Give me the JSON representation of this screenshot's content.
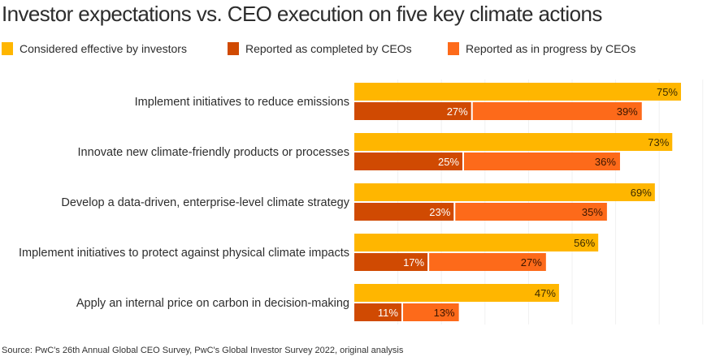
{
  "chart_data": {
    "type": "bar",
    "orientation": "horizontal",
    "title": "Investor expectations vs. CEO execution on five key climate actions",
    "categories": [
      "Implement initiatives to reduce emissions",
      "Innovate new climate-friendly products or processes",
      "Develop a data-driven, enterprise-level climate strategy",
      "Implement initiatives to protect against physical climate impacts",
      "Apply an internal price on carbon in decision-making"
    ],
    "series": [
      {
        "name": "Considered effective by investors",
        "values": [
          75,
          73,
          69,
          56,
          47
        ],
        "color": "#FFB600",
        "label_color": "#3a2a00"
      },
      {
        "name": "Reported as completed by CEOs",
        "values": [
          27,
          25,
          23,
          17,
          11
        ],
        "color": "#D04A02",
        "label_color": "#ffffff",
        "stack": "ceo"
      },
      {
        "name": "Reported as in progress by CEOs",
        "values": [
          39,
          36,
          35,
          27,
          13
        ],
        "color": "#FD6A1A",
        "label_color": "#3a1500",
        "stack": "ceo"
      }
    ],
    "value_suffix": "%",
    "xlim": [
      0,
      75
    ],
    "grid": true,
    "legend_placement": "top-left",
    "source": "Source: PwC's 26th Annual Global CEO Survey, PwC's Global Investor Survey 2022, original analysis"
  }
}
